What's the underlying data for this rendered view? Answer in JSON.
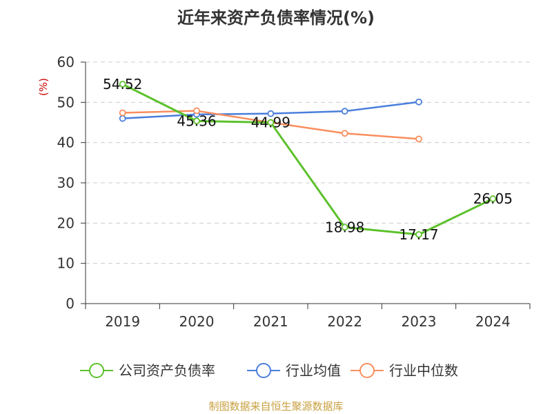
{
  "chart_data": {
    "type": "line",
    "title": "近年来资产负债率情况(%)",
    "y_unit": "(%)",
    "categories": [
      "2019",
      "2020",
      "2021",
      "2022",
      "2023",
      "2024"
    ],
    "ylim": [
      0,
      60
    ],
    "yticks": [
      0,
      10,
      20,
      30,
      40,
      50,
      60
    ],
    "grid": true,
    "legend_position": "bottom",
    "series": [
      {
        "name": "公司资产负债率",
        "color": "#5cc12b",
        "values": [
          54.52,
          45.36,
          44.99,
          18.98,
          17.17,
          26.05
        ],
        "labels": [
          "54.52",
          "45.36",
          "44.99",
          "18.98",
          "17.17",
          "26.05"
        ]
      },
      {
        "name": "行业均值",
        "color": "#4a7edb",
        "values": [
          46.0,
          47.0,
          47.2,
          47.8,
          50.1,
          null
        ]
      },
      {
        "name": "行业中位数",
        "color": "#f98e5e",
        "values": [
          47.4,
          47.9,
          45.0,
          42.3,
          40.9,
          null
        ]
      }
    ]
  },
  "source": "制图数据来自恒生聚源数据库",
  "colors": {
    "unit": "#cc0000",
    "source": "#c8a040",
    "grid": "#cccccc",
    "axis": "#333333"
  }
}
